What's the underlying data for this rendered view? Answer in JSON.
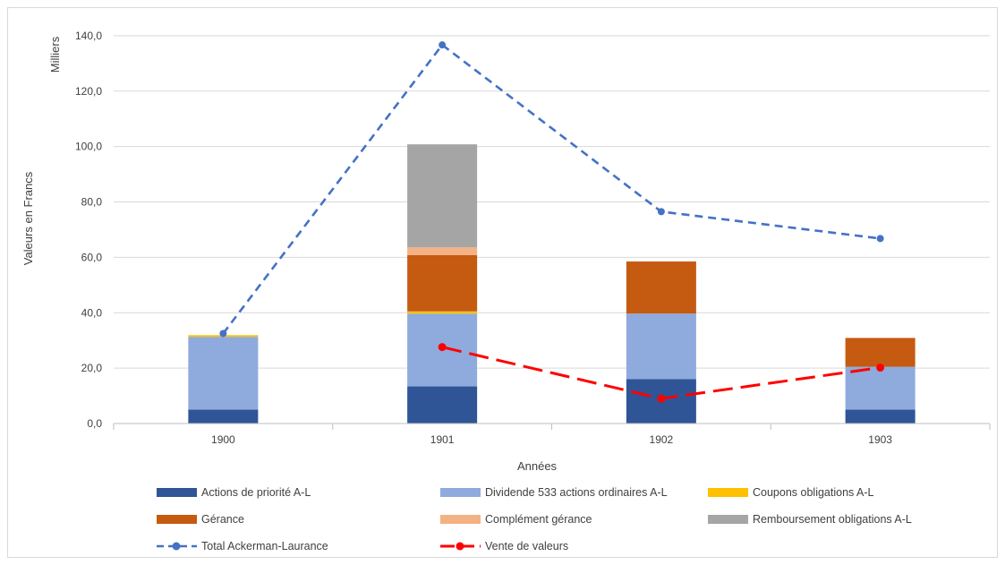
{
  "chart_data": {
    "type": "bar",
    "stacked": true,
    "categories": [
      "1900",
      "1901",
      "1902",
      "1903"
    ],
    "xlabel": "Années",
    "ylabel": "Valeurs en Francs",
    "y_unit_label": "Milliers",
    "ylim": [
      0,
      150
    ],
    "y_ticks": [
      0,
      20,
      40,
      60,
      80,
      100,
      120,
      140
    ],
    "y_tick_labels": [
      "0,0",
      "20,0",
      "40,0",
      "60,0",
      "80,0",
      "100,0",
      "120,0",
      "140,0"
    ],
    "grid": true,
    "legend_position": "bottom",
    "series": [
      {
        "name": "Actions de priorité A-L",
        "type": "bar",
        "color": "#2f5597",
        "values": [
          5.0,
          13.4,
          16.0,
          5.0
        ]
      },
      {
        "name": "Dividende 533 actions ordinaires A-L",
        "type": "bar",
        "color": "#8faadc",
        "values": [
          26.3,
          26.3,
          23.7,
          15.5
        ]
      },
      {
        "name": "Coupons obligations A-L",
        "type": "bar",
        "color": "#ffc000",
        "values": [
          0.6,
          0.8,
          0,
          0
        ]
      },
      {
        "name": "Gérance",
        "type": "bar",
        "color": "#c55a11",
        "values": [
          0,
          20.3,
          18.8,
          10.4
        ]
      },
      {
        "name": "Complément gérance",
        "type": "bar",
        "color": "#f4b183",
        "values": [
          0,
          2.8,
          0,
          0
        ]
      },
      {
        "name": "Remboursement obligations A-L",
        "type": "bar",
        "color": "#a5a5a5",
        "values": [
          0,
          37.2,
          0,
          0
        ]
      },
      {
        "name": "Total Ackerman-Laurance",
        "type": "line",
        "style": "dashed",
        "color": "#4472c4",
        "values": [
          32.5,
          136.7,
          76.5,
          66.8
        ]
      },
      {
        "name": "Vente de valeurs",
        "type": "line",
        "style": "dashed",
        "color": "#ff0000",
        "values": [
          null,
          27.6,
          9.0,
          20.2
        ]
      }
    ]
  }
}
